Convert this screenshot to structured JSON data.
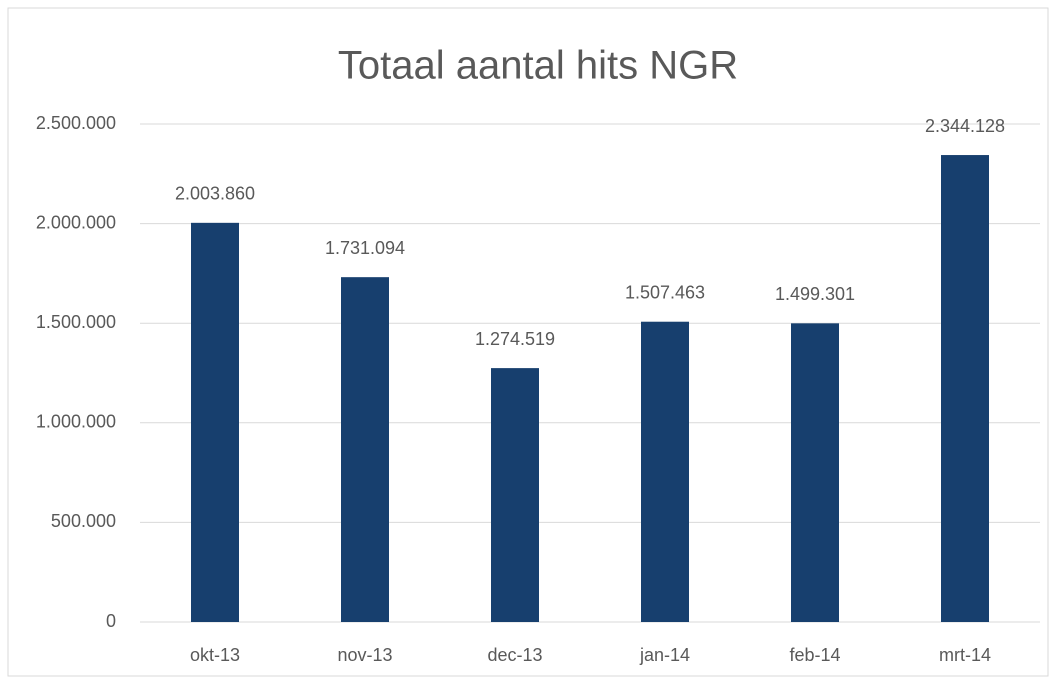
{
  "chart_data": {
    "type": "bar",
    "title": "Totaal aantal hits NGR",
    "categories": [
      "okt-13",
      "nov-13",
      "dec-13",
      "jan-14",
      "feb-14",
      "mrt-14"
    ],
    "values": [
      2003860,
      1731094,
      1274519,
      1507463,
      1499301,
      2344128
    ],
    "value_labels": [
      "2.003.860",
      "1.731.094",
      "1.274.519",
      "1.507.463",
      "1.499.301",
      "2.344.128"
    ],
    "color": "#173f6e",
    "ylim": [
      0,
      2500000
    ],
    "yticks": [
      0,
      {
        "value": 500000,
        "label": "500.000"
      },
      {
        "value": 1000000,
        "label": "1.000.000"
      },
      {
        "value": 1500000,
        "label": "1.500.000"
      },
      {
        "value": 2000000,
        "label": "2.000.000"
      },
      {
        "value": 2500000,
        "label": "2.500.000"
      }
    ],
    "grid": true
  }
}
